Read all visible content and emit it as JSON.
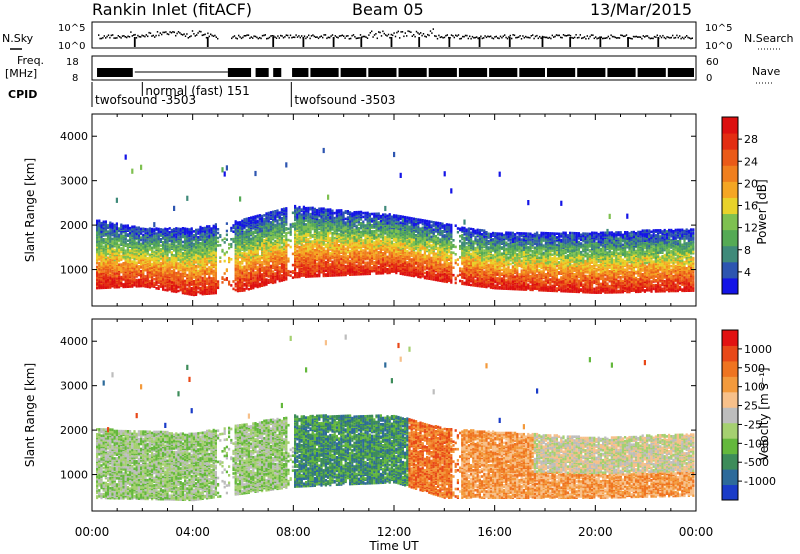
{
  "header": {
    "station": "Rankin Inlet (fitACF)",
    "beam": "Beam 05",
    "date": "13/Mar/2015"
  },
  "top_panels": {
    "nsky": {
      "label": "N.Sky",
      "ticks": [
        "10^5",
        "10^0"
      ]
    },
    "nsearch": {
      "label": "N.Search",
      "ticks": [
        "10^5",
        "10^0"
      ]
    },
    "freq": {
      "label_1": "Freq.",
      "label_2": "[MHz]",
      "ticks": [
        "18",
        "8"
      ]
    },
    "nave": {
      "label": "Nave",
      "ticks": [
        "60",
        "0"
      ]
    },
    "cpid": {
      "label": "CPID",
      "segments": [
        {
          "text": "twofsound -3503",
          "start_hour": 0.0,
          "row": 2
        },
        {
          "text": "normal (fast) 151",
          "start_hour": 2.0,
          "row": 1
        },
        {
          "text": "twofsound -3503",
          "start_hour": 7.92,
          "row": 2
        }
      ]
    }
  },
  "chart_data": [
    {
      "type": "heatmap",
      "title": "Power",
      "xlabel": "Time UT",
      "ylabel": "Slant Range [km]",
      "xlim": [
        0,
        24
      ],
      "ylim": [
        180,
        4500
      ],
      "x_tick_labels": [
        "00:00",
        "04:00",
        "08:00",
        "12:00",
        "16:00",
        "20:00",
        "00:00"
      ],
      "y_ticks": [
        1000,
        2000,
        3000,
        4000
      ],
      "colorbar": {
        "label": "Power [dB]",
        "ticks": [
          4,
          8,
          12,
          16,
          20,
          24,
          28
        ],
        "range": [
          0,
          32
        ],
        "colors": [
          "#1414e6",
          "#2d55b0",
          "#3f8a7a",
          "#55aa55",
          "#7ec050",
          "#e8d22a",
          "#f5a623",
          "#f07f1e",
          "#ea5a18",
          "#e32d12",
          "#dd1010"
        ]
      },
      "main_echo_band_km": [
        {
          "hour": 0,
          "low": 550,
          "high": 2100
        },
        {
          "hour": 2,
          "low": 600,
          "high": 1900
        },
        {
          "hour": 4,
          "low": 400,
          "high": 1900
        },
        {
          "hour": 6,
          "low": 500,
          "high": 2100
        },
        {
          "hour": 8,
          "low": 800,
          "high": 2400
        },
        {
          "hour": 12,
          "low": 900,
          "high": 2200
        },
        {
          "hour": 14,
          "low": 700,
          "high": 2000
        },
        {
          "hour": 16,
          "low": 550,
          "high": 1800
        },
        {
          "hour": 20,
          "low": 450,
          "high": 1800
        },
        {
          "hour": 24,
          "low": 500,
          "high": 1900
        }
      ]
    },
    {
      "type": "heatmap",
      "title": "Velocity",
      "xlabel": "Time UT",
      "ylabel": "Slant Range [km]",
      "xlim": [
        0,
        24
      ],
      "ylim": [
        180,
        4500
      ],
      "x_tick_labels": [
        "00:00",
        "04:00",
        "08:00",
        "12:00",
        "16:00",
        "20:00",
        "00:00"
      ],
      "y_ticks": [
        1000,
        2000,
        3000,
        4000
      ],
      "colorbar": {
        "label": "Velocity [m s⁻¹]",
        "ticks": [
          "1000",
          "500",
          "100",
          "25",
          "-25",
          "-100",
          "-500",
          "-1000"
        ],
        "colors": [
          "#1a3cc8",
          "#2d6a9a",
          "#3d8c5a",
          "#64b83c",
          "#a5d070",
          "#bdbdbd",
          "#f7c08a",
          "#f39a3c",
          "#ef7420",
          "#e84818",
          "#e21212"
        ]
      },
      "main_echo_band_km": [
        {
          "hour": 0,
          "low": 450,
          "high": 2000
        },
        {
          "hour": 4,
          "low": 400,
          "high": 1900
        },
        {
          "hour": 8,
          "low": 700,
          "high": 2300
        },
        {
          "hour": 12,
          "low": 800,
          "high": 2300
        },
        {
          "hour": 14,
          "low": 450,
          "high": 2000
        },
        {
          "hour": 20,
          "low": 450,
          "high": 1800
        },
        {
          "hour": 24,
          "low": 500,
          "high": 1900
        }
      ]
    }
  ]
}
